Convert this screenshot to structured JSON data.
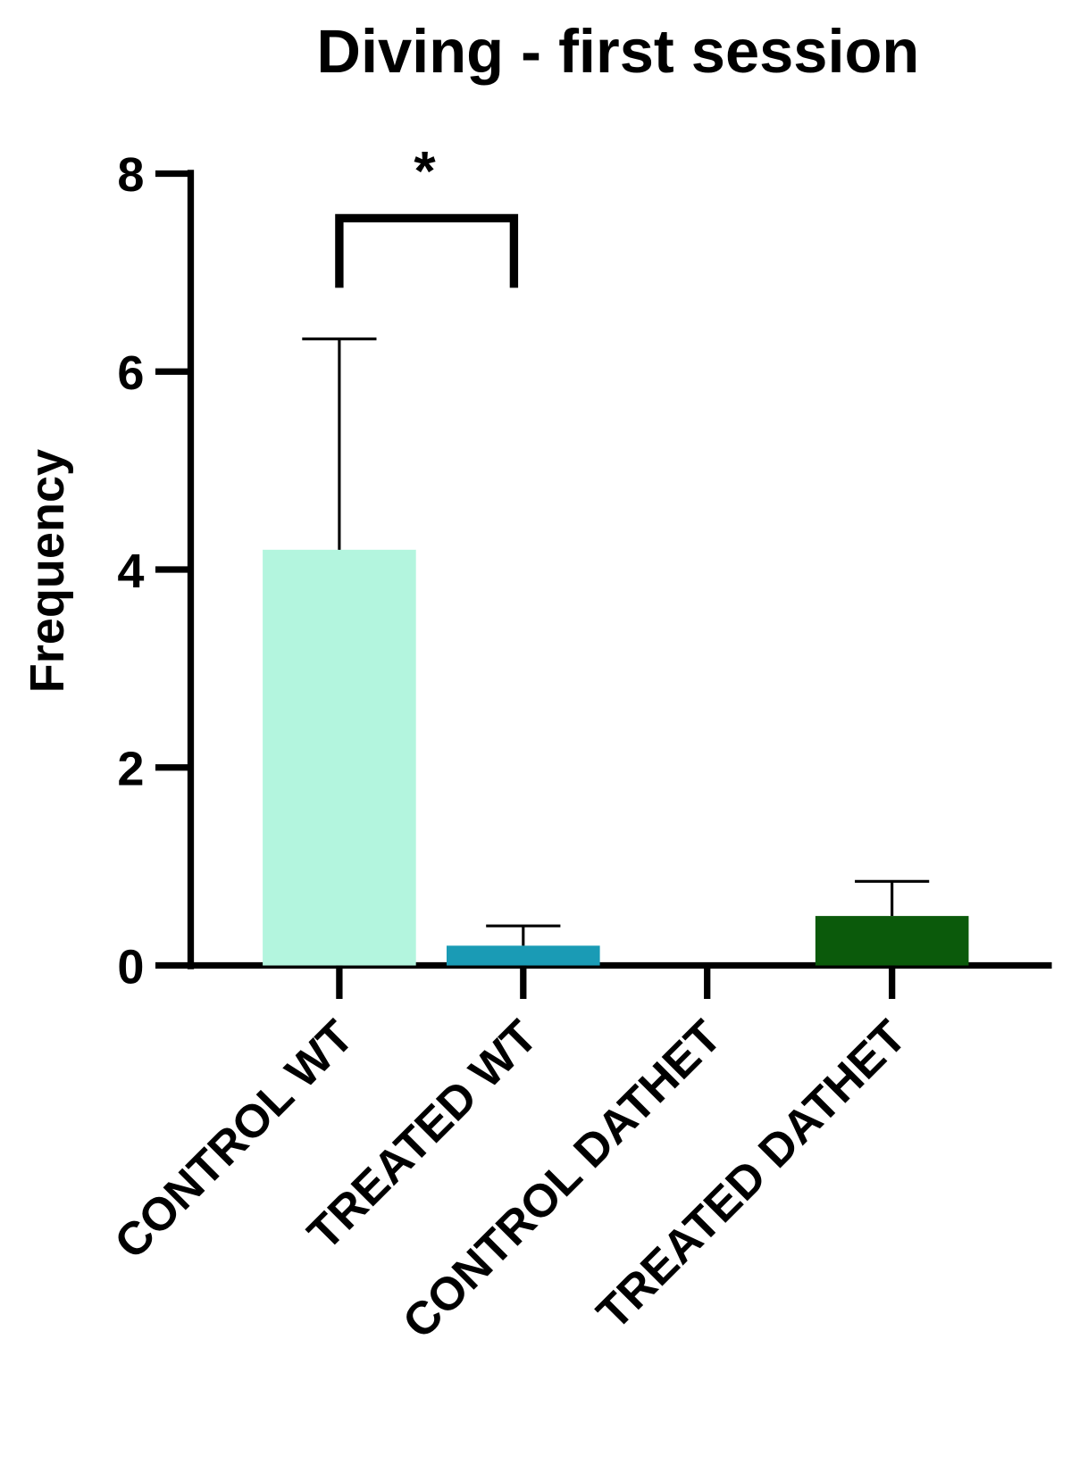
{
  "chart_data": {
    "type": "bar",
    "title": "Diving - first session",
    "y_label": "Frequency",
    "categories": [
      "CONTROL WT",
      "TREATED WT",
      "CONTROL DATHET",
      "TREATED DATHET"
    ],
    "values": [
      4.2,
      0.2,
      0,
      0.5
    ],
    "errors": [
      2.13,
      0.2,
      0,
      0.35
    ],
    "colors": [
      "#b3f5de",
      "#1a9bb5",
      "#7a7a7a",
      "#0b5a0b"
    ],
    "ylim": [
      0,
      8
    ],
    "yticks": [
      0,
      2,
      4,
      6,
      8
    ],
    "annotation": "*"
  }
}
